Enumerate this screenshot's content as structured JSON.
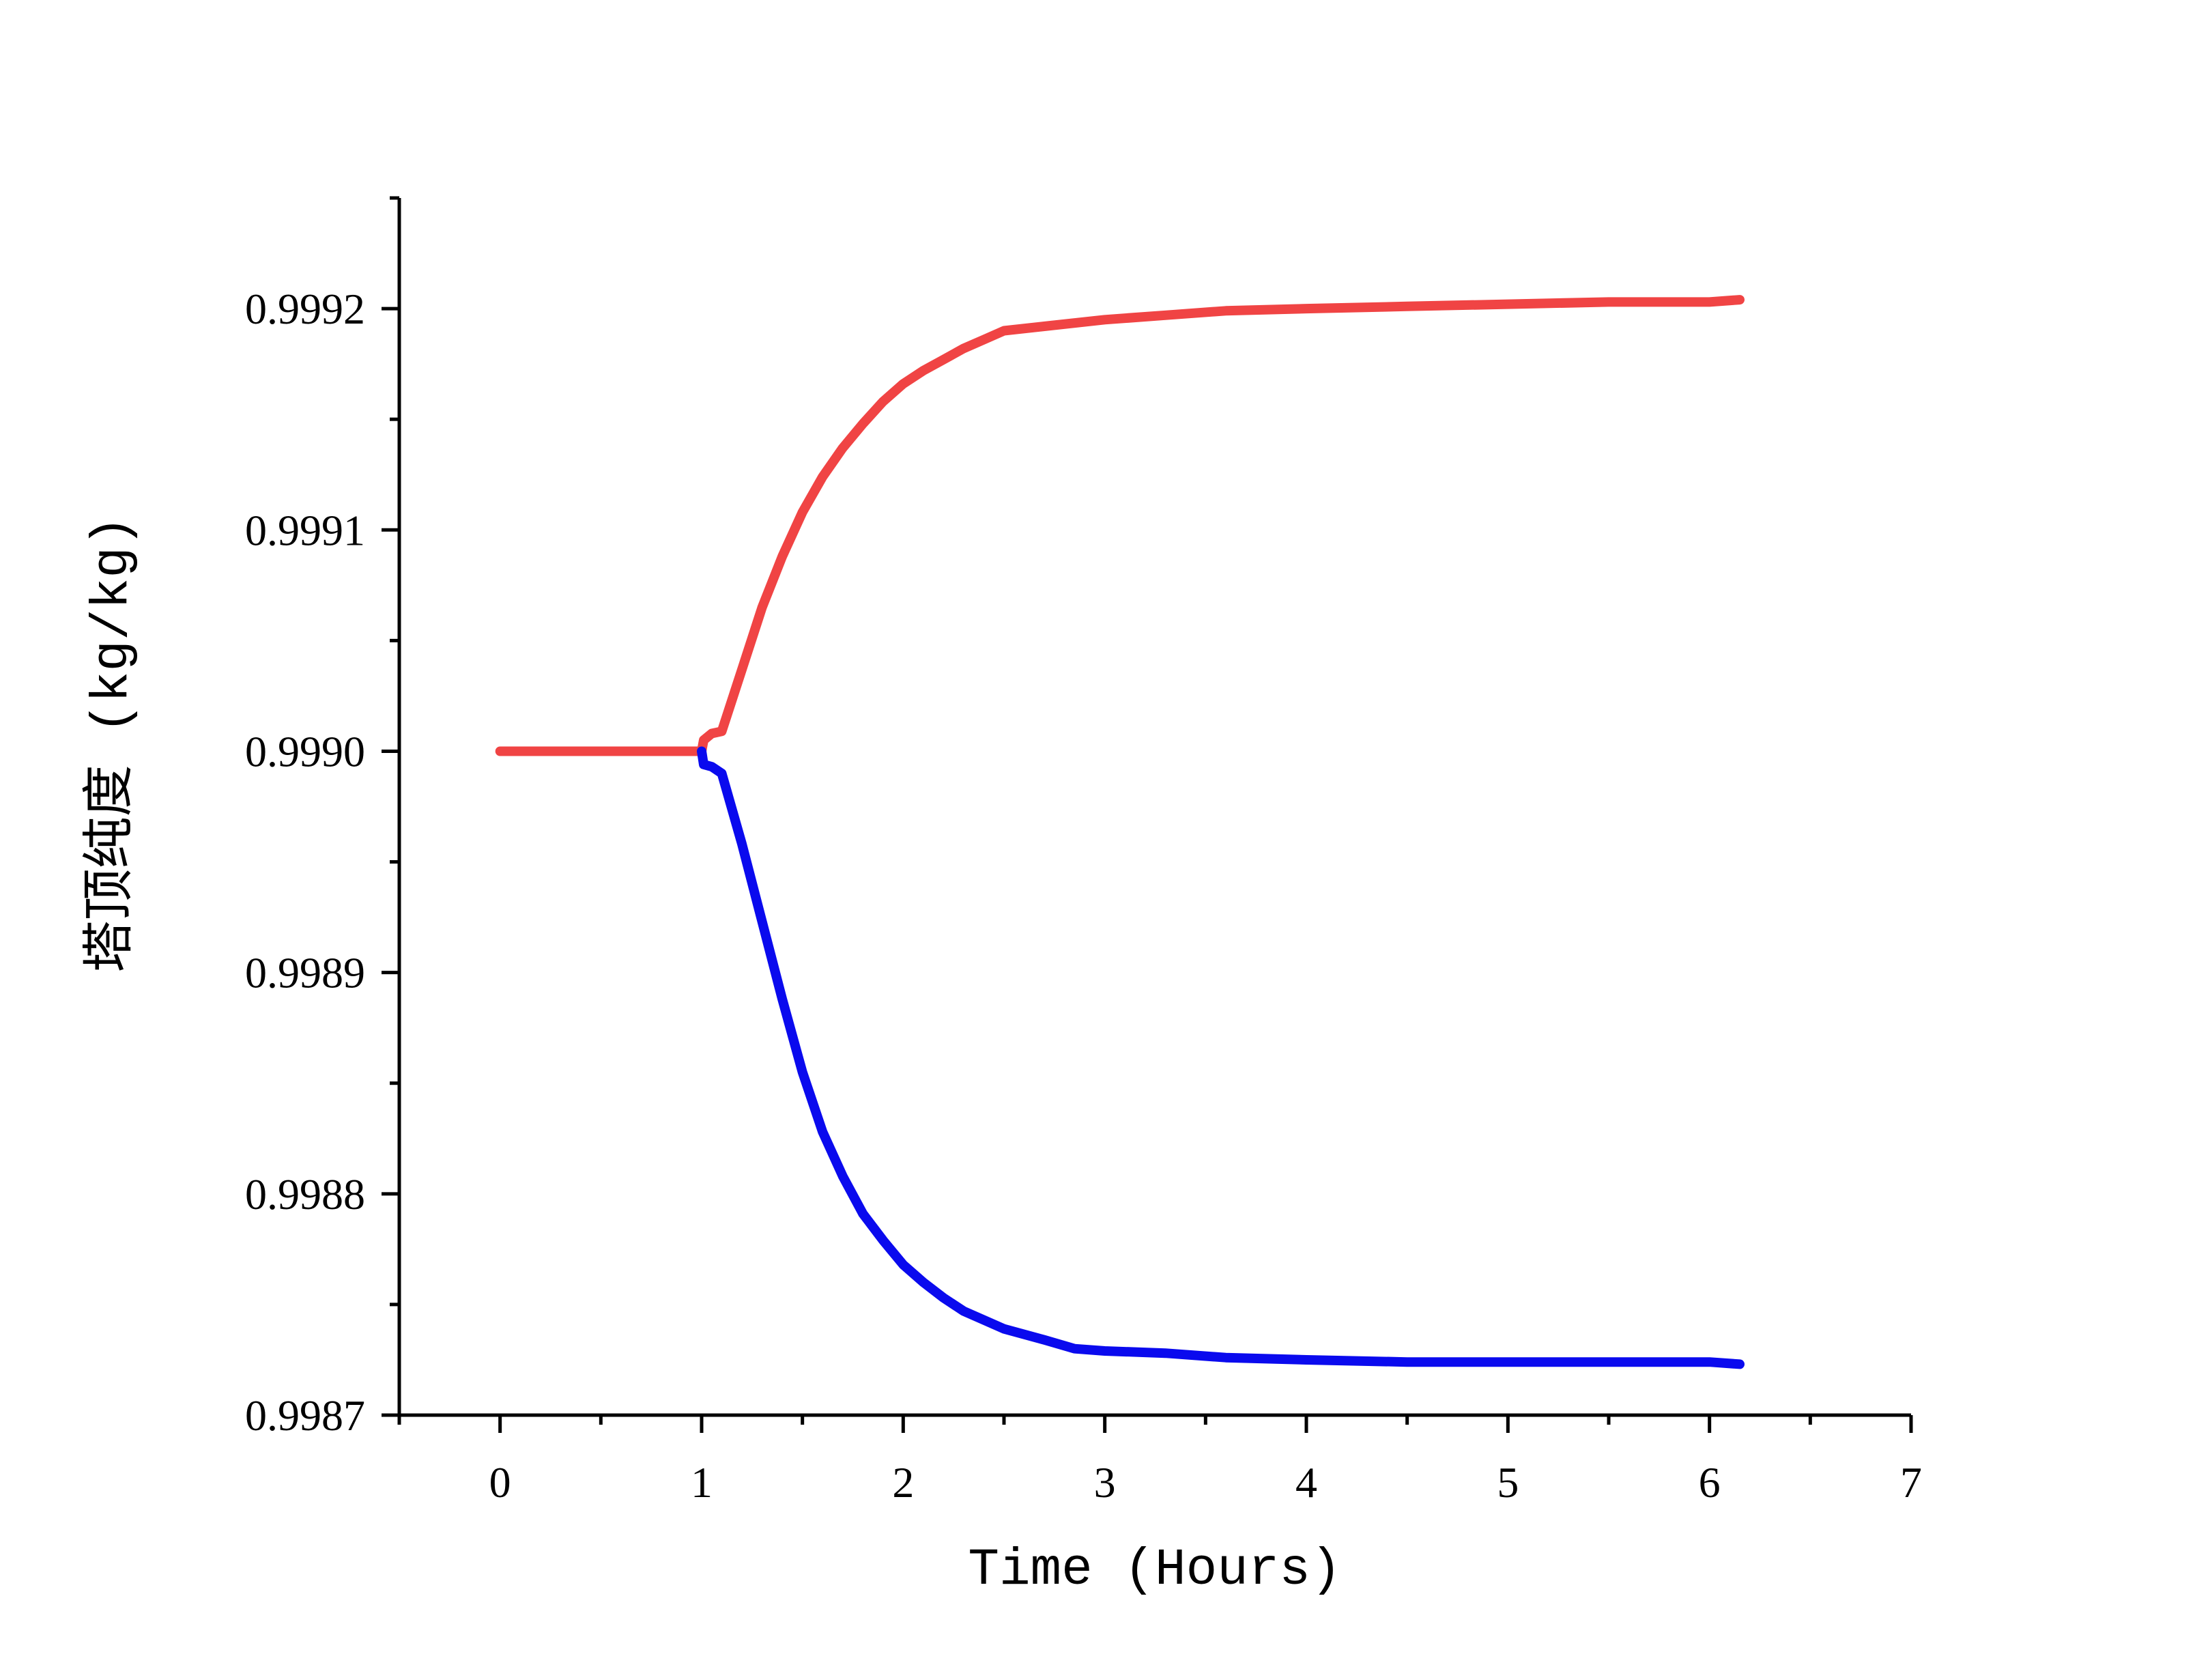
{
  "chart_data": {
    "type": "line",
    "xlabel": "Time (Hours)",
    "ylabel": "塔顶纯度 (kg/kg)",
    "xlim": [
      -0.5,
      7
    ],
    "ylim": [
      0.9987,
      0.99925
    ],
    "x_ticks": [
      "0",
      "1",
      "2",
      "3",
      "4",
      "5",
      "6",
      "7"
    ],
    "y_ticks": [
      "0.9987",
      "0.9988",
      "0.9989",
      "0.9990",
      "0.9991",
      "0.9992"
    ],
    "grid": false,
    "series": [
      {
        "color": "#f04444",
        "x": [
          0,
          0.5,
          1.0,
          1.01,
          1.05,
          1.1,
          1.2,
          1.3,
          1.4,
          1.5,
          1.6,
          1.7,
          1.8,
          1.9,
          2.0,
          2.1,
          2.2,
          2.3,
          2.4,
          2.5,
          2.7,
          3.0,
          3.3,
          3.6,
          4.0,
          4.5,
          5.0,
          5.5,
          6.0,
          6.15
        ],
        "y": [
          0.999,
          0.999,
          0.999,
          0.999005,
          0.999008,
          0.999009,
          0.999037,
          0.999065,
          0.999088,
          0.999108,
          0.999124,
          0.999137,
          0.999148,
          0.999158,
          0.999166,
          0.999172,
          0.999177,
          0.999182,
          0.999186,
          0.99919,
          0.999192,
          0.999195,
          0.999197,
          0.999199,
          0.9992,
          0.999201,
          0.999202,
          0.999203,
          0.999203,
          0.999204
        ]
      },
      {
        "color": "#0a0aee",
        "x": [
          1.0,
          1.01,
          1.05,
          1.1,
          1.2,
          1.3,
          1.4,
          1.5,
          1.6,
          1.7,
          1.8,
          1.9,
          2.0,
          2.1,
          2.2,
          2.3,
          2.4,
          2.5,
          2.7,
          2.85,
          3.0,
          3.3,
          3.6,
          4.0,
          4.5,
          5.0,
          5.5,
          6.0,
          6.15
        ],
        "y": [
          0.999,
          0.998994,
          0.998993,
          0.99899,
          0.998958,
          0.998923,
          0.998888,
          0.998855,
          0.998828,
          0.998808,
          0.998791,
          0.998779,
          0.998768,
          0.99876,
          0.998753,
          0.998747,
          0.998743,
          0.998739,
          0.998734,
          0.99873,
          0.998729,
          0.998728,
          0.998726,
          0.998725,
          0.998724,
          0.998724,
          0.998724,
          0.998724,
          0.998723
        ]
      }
    ]
  }
}
